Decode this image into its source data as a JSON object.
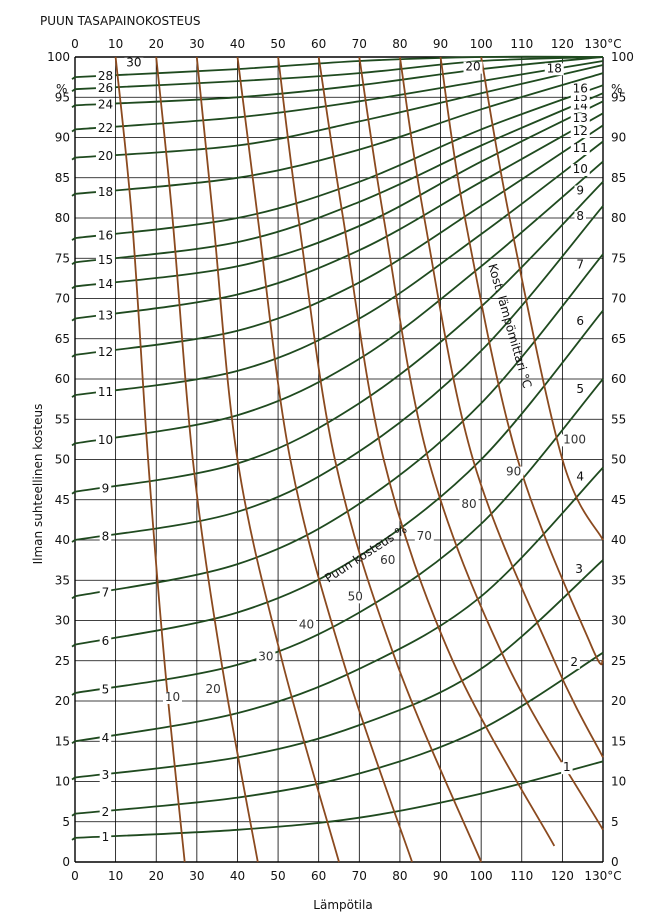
{
  "chart_data": {
    "type": "line",
    "title": "PUUN TASAPAINOKOSTEUS",
    "xlabel": "Lämpötila",
    "ylabel": "Ilman suhteellinen kosteus",
    "xlim": [
      0,
      130
    ],
    "ylim": [
      0,
      100
    ],
    "x_ticks": [
      "0",
      "10",
      "20",
      "30",
      "40",
      "50",
      "60",
      "70",
      "80",
      "90",
      "100",
      "110",
      "120",
      "130°C"
    ],
    "y_ticks": [
      "0",
      "5",
      "10",
      "15",
      "20",
      "25",
      "30",
      "35",
      "40",
      "45",
      "50",
      "55",
      "60",
      "65",
      "70",
      "75",
      "80",
      "85",
      "90",
      "95",
      "100"
    ],
    "y_unit": "%",
    "grid": true,
    "colors": {
      "emc": "#1f4a1f",
      "wet_bulb": "#8b4a1f",
      "grid": "#000000"
    },
    "emc_curves": {
      "label": "Puun kosteus %",
      "series": [
        {
          "name": "1",
          "x": [
            0,
            40,
            70,
            100,
            130
          ],
          "y": [
            3,
            4,
            5.5,
            8.5,
            12.5
          ]
        },
        {
          "name": "2",
          "x": [
            0,
            40,
            70,
            100,
            130
          ],
          "y": [
            6,
            8,
            11,
            16.5,
            26
          ]
        },
        {
          "name": "3",
          "x": [
            0,
            40,
            70,
            100,
            130
          ],
          "y": [
            10.5,
            13,
            17,
            24,
            37.5
          ]
        },
        {
          "name": "4",
          "x": [
            0,
            40,
            70,
            100,
            130
          ],
          "y": [
            15,
            18.5,
            24,
            33,
            49
          ]
        },
        {
          "name": "5",
          "x": [
            0,
            40,
            70,
            100,
            130
          ],
          "y": [
            21,
            24.5,
            31,
            42,
            60
          ]
        },
        {
          "name": "6",
          "x": [
            0,
            40,
            70,
            100,
            130
          ],
          "y": [
            27,
            31,
            38,
            50,
            68.5
          ]
        },
        {
          "name": "7",
          "x": [
            0,
            40,
            70,
            100,
            130
          ],
          "y": [
            33,
            37,
            44.5,
            57,
            75.5
          ]
        },
        {
          "name": "8",
          "x": [
            0,
            40,
            70,
            100,
            130
          ],
          "y": [
            40,
            43.5,
            51,
            63.5,
            81.5
          ]
        },
        {
          "name": "9",
          "x": [
            0,
            40,
            70,
            100,
            130
          ],
          "y": [
            46,
            49.5,
            57,
            69,
            84.5
          ]
        },
        {
          "name": "10",
          "x": [
            0,
            40,
            70,
            100,
            130
          ],
          "y": [
            52,
            55.5,
            62.5,
            74,
            87
          ]
        },
        {
          "name": "11",
          "x": [
            0,
            40,
            70,
            100,
            130
          ],
          "y": [
            58,
            61,
            67.5,
            78,
            89.5
          ]
        },
        {
          "name": "12",
          "x": [
            0,
            40,
            70,
            100,
            130
          ],
          "y": [
            63,
            66,
            72,
            81.5,
            91.5
          ]
        },
        {
          "name": "13",
          "x": [
            0,
            40,
            70,
            100,
            130
          ],
          "y": [
            67.5,
            70.5,
            76,
            84.5,
            93
          ]
        },
        {
          "name": "14",
          "x": [
            0,
            40,
            70,
            100,
            130
          ],
          "y": [
            71.5,
            74,
            79,
            87,
            94.5
          ]
        },
        {
          "name": "15",
          "x": [
            0,
            40,
            70,
            100,
            130
          ],
          "y": [
            74.5,
            77,
            82,
            89,
            95.5
          ]
        },
        {
          "name": "16",
          "x": [
            0,
            40,
            70,
            100,
            130
          ],
          "y": [
            77.5,
            80,
            84.5,
            91,
            96.5
          ]
        },
        {
          "name": "18",
          "x": [
            0,
            40,
            70,
            100,
            130
          ],
          "y": [
            83,
            85,
            88.5,
            93.5,
            98
          ]
        },
        {
          "name": "20",
          "x": [
            0,
            40,
            70,
            100,
            130
          ],
          "y": [
            87.5,
            89,
            92,
            95.5,
            99
          ]
        },
        {
          "name": "22",
          "x": [
            0,
            40,
            70,
            100,
            130
          ],
          "y": [
            91,
            92.5,
            94.5,
            97,
            99.5
          ]
        },
        {
          "name": "24",
          "x": [
            0,
            40,
            70,
            100,
            130
          ],
          "y": [
            94,
            95,
            96.5,
            98.5,
            100
          ]
        },
        {
          "name": "26",
          "x": [
            0,
            40,
            70,
            100,
            130
          ],
          "y": [
            96,
            97,
            98,
            99.5,
            100
          ]
        },
        {
          "name": "28",
          "x": [
            0,
            40,
            70,
            100,
            130
          ],
          "y": [
            97.5,
            98.5,
            99.5,
            100,
            100
          ]
        }
      ]
    },
    "wet_bulb_curves": {
      "label": "Kost. lämpömittari °C",
      "series": [
        {
          "name": "10",
          "x": [
            10,
            14,
            18,
            22,
            27
          ],
          "y": [
            100,
            80,
            50,
            25,
            0
          ]
        },
        {
          "name": "20",
          "x": [
            20,
            24,
            29,
            36,
            45
          ],
          "y": [
            100,
            80,
            50,
            25,
            0
          ]
        },
        {
          "name": "30",
          "x": [
            30,
            34,
            40,
            51,
            65
          ],
          "y": [
            100,
            80,
            50,
            25,
            0
          ]
        },
        {
          "name": "40",
          "x": [
            40,
            45,
            53,
            66,
            83
          ],
          "y": [
            100,
            80,
            50,
            25,
            0
          ]
        },
        {
          "name": "50",
          "x": [
            50,
            55,
            64,
            79,
            100
          ],
          "y": [
            100,
            80,
            50,
            25,
            0
          ]
        },
        {
          "name": "60",
          "x": [
            60,
            66,
            76,
            93,
            118
          ],
          "y": [
            100,
            80,
            50,
            25,
            2
          ]
        },
        {
          "name": "70",
          "x": [
            70,
            76,
            87,
            106,
            130
          ],
          "y": [
            100,
            80,
            50,
            25,
            4
          ]
        },
        {
          "name": "80",
          "x": [
            80,
            86,
            98,
            118,
            130
          ],
          "y": [
            100,
            80,
            50,
            25,
            13
          ]
        },
        {
          "name": "90",
          "x": [
            90,
            96,
            109,
            127,
            130
          ],
          "y": [
            100,
            80,
            50,
            27,
            25
          ]
        },
        {
          "name": "100",
          "x": [
            100,
            107,
            120,
            130
          ],
          "y": [
            100,
            80,
            50,
            40
          ]
        }
      ]
    },
    "annotations": [
      "30",
      "20",
      "18",
      "100",
      "%"
    ]
  }
}
